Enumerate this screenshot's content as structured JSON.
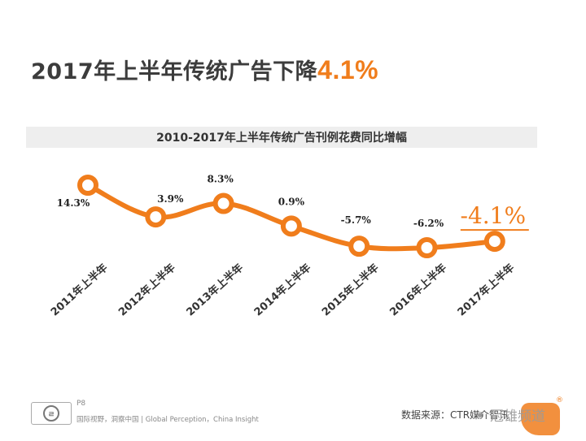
{
  "page": {
    "title_main": "2017年上半年传统广告下降",
    "title_accent": "4.1%"
  },
  "chart_data": {
    "type": "line",
    "title": "2010-2017年上半年传统广告刊例花费同比增幅",
    "categories": [
      "2011年上半年",
      "2012年上半年",
      "2013年上半年",
      "2014年上半年",
      "2015年上半年",
      "2016年上半年",
      "2017年上半年"
    ],
    "values": [
      14.3,
      3.9,
      8.3,
      0.9,
      -5.7,
      -6.2,
      -4.1
    ],
    "labels": [
      "14.3%",
      "3.9%",
      "8.3%",
      "0.9%",
      "-5.7%",
      "-6.2%",
      "-4.1%"
    ],
    "highlight_index": 6,
    "ylim": [
      -8,
      16
    ],
    "color": "#f07d1c"
  },
  "footer": {
    "logo_text": "ㄹ",
    "page_number": "P8",
    "slogan": "国际视野，洞察中国 | Global Perception，China Insight",
    "source": "数据来源：CTR媒介智讯",
    "wechat_icon": "wechat-icon",
    "watermark": "冠雄频道",
    "registered_mark": "®"
  }
}
